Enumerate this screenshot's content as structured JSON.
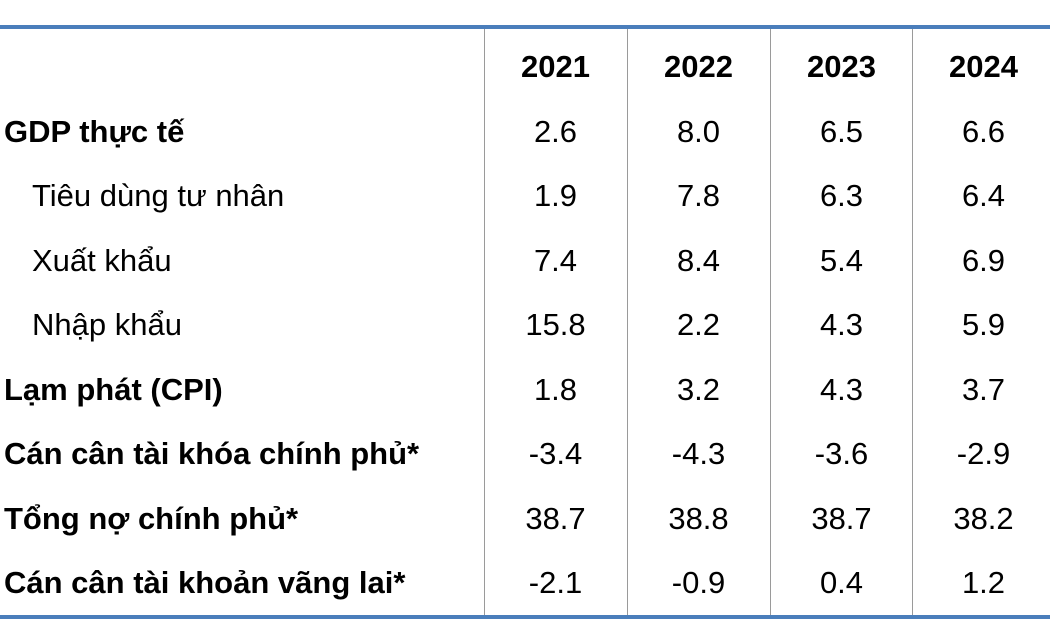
{
  "table": {
    "columns": [
      "2021",
      "2022",
      "2023",
      "2024"
    ],
    "rows": [
      {
        "label": "GDP thực tế",
        "bold": true,
        "values": [
          "2.6",
          "8.0",
          "6.5",
          "6.6"
        ]
      },
      {
        "label": "Tiêu dùng tư nhân",
        "bold": false,
        "values": [
          "1.9",
          "7.8",
          "6.3",
          "6.4"
        ]
      },
      {
        "label": "Xuất khẩu",
        "bold": false,
        "values": [
          "7.4",
          "8.4",
          "5.4",
          "6.9"
        ]
      },
      {
        "label": "Nhập khẩu",
        "bold": false,
        "values": [
          "15.8",
          "2.2",
          "4.3",
          "5.9"
        ]
      },
      {
        "label": "Lạm phát (CPI)",
        "bold": true,
        "values": [
          "1.8",
          "3.2",
          "4.3",
          "3.7"
        ]
      },
      {
        "label": "Cán cân tài khóa chính phủ*",
        "bold": true,
        "values": [
          "-3.4",
          "-4.3",
          "-3.6",
          "-2.9"
        ]
      },
      {
        "label": "Tổng nợ chính phủ*",
        "bold": true,
        "values": [
          "38.7",
          "38.8",
          "38.7",
          "38.2"
        ]
      },
      {
        "label": "Cán cân tài khoản vãng lai*",
        "bold": true,
        "values": [
          "-2.1",
          "-0.9",
          "0.4",
          "1.2"
        ]
      }
    ]
  }
}
